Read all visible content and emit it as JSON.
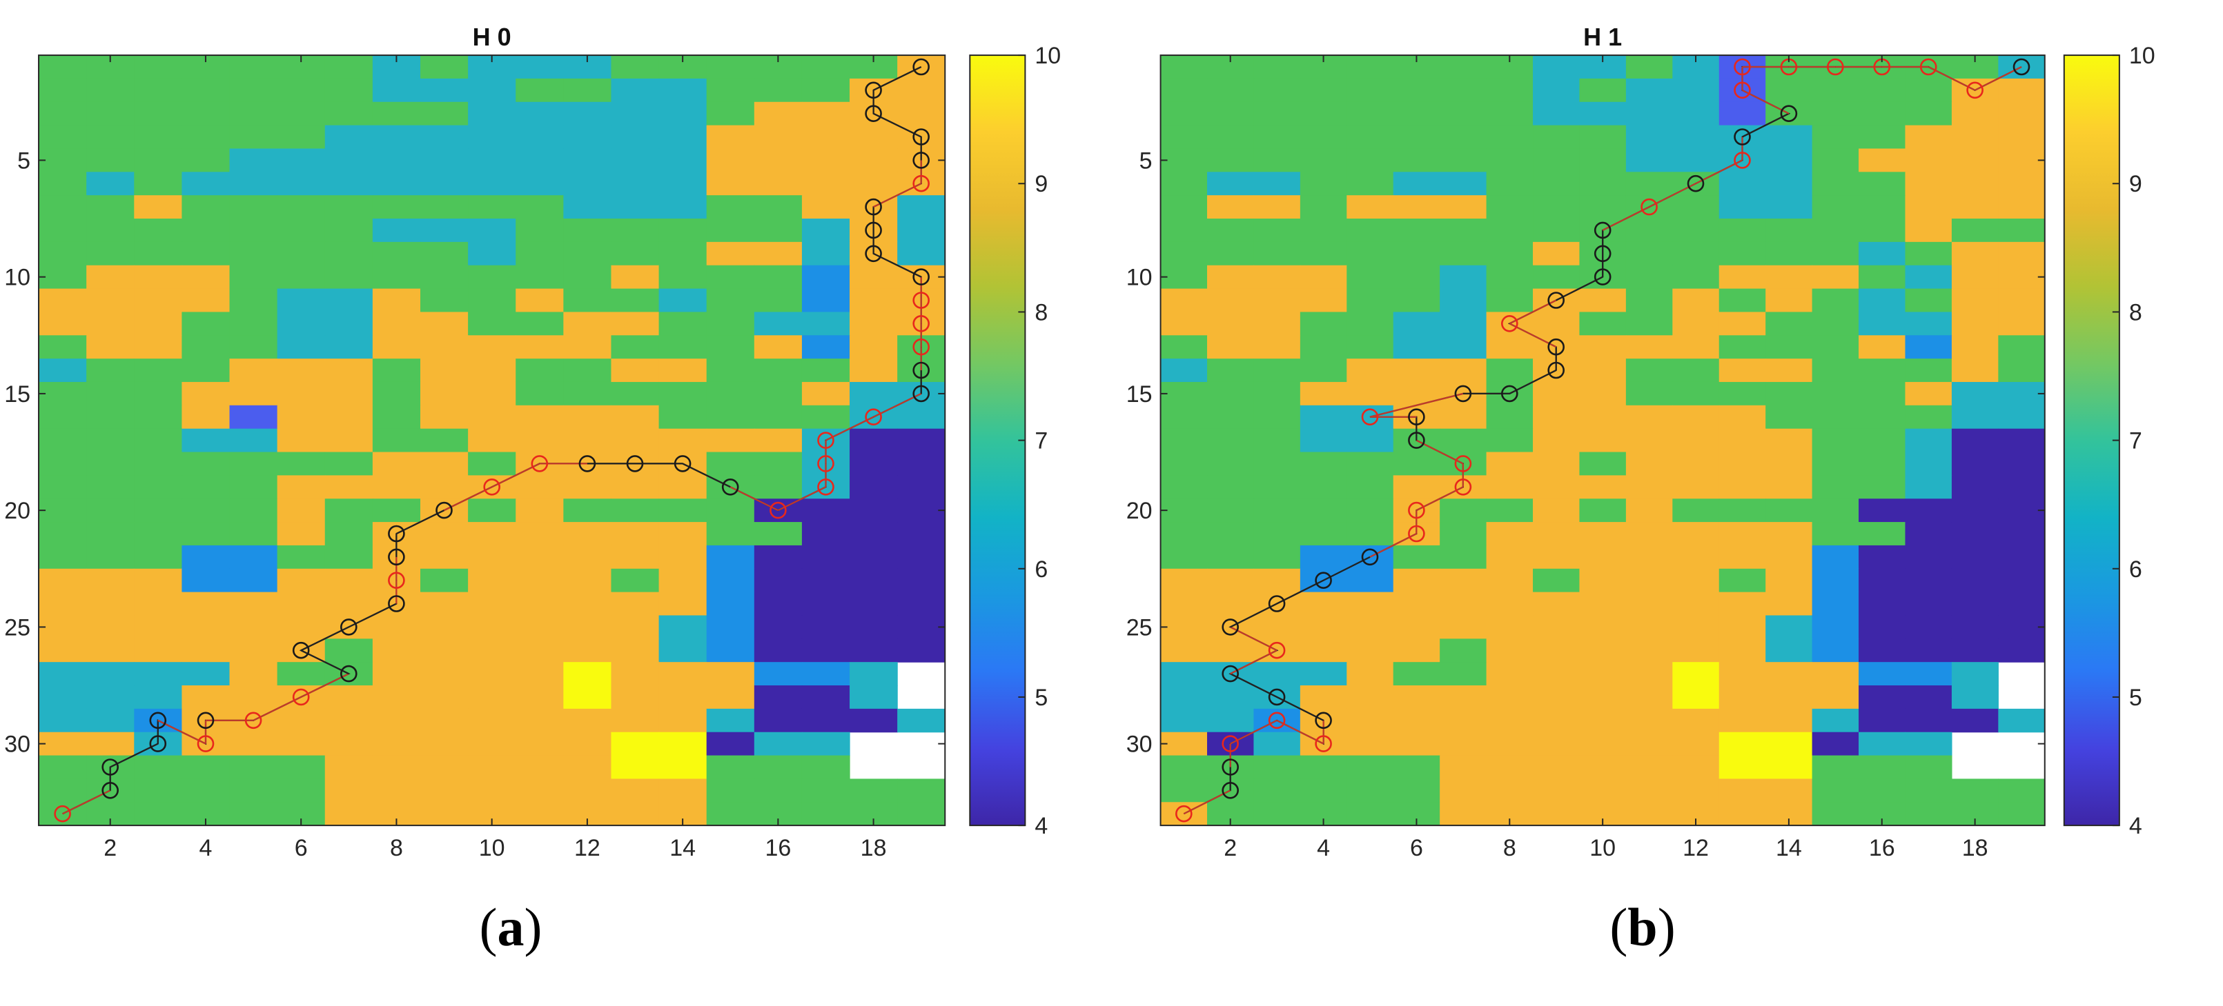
{
  "chart_data": [
    {
      "type": "heatmap",
      "title": "H 0",
      "caption_open": "(",
      "caption_letter": "a",
      "caption_close": ")",
      "xlabel": "",
      "ylabel": "",
      "xlim": [
        0.5,
        19.5
      ],
      "ylim": [
        33.5,
        0.5
      ],
      "x_ticks": [
        2,
        4,
        6,
        8,
        10,
        12,
        14,
        16,
        18
      ],
      "y_ticks": [
        5,
        10,
        15,
        20,
        25,
        30
      ],
      "colorbar": {
        "min": 4,
        "max": 10,
        "ticks": [
          4,
          5,
          6,
          7,
          8,
          9,
          10
        ],
        "colormap": "parula"
      },
      "grid_rows": [
        "8888888787778888889",
        "8888888777887788899",
        "8888888887777789999",
        "8888887777777799999",
        "8888777777777799999",
        "8787777777777799999",
        "8898888888877788997",
        "8888888777888888797",
        "8888888887888899797",
        "8999888888889888699",
        "9999877988988788699",
        "9998877998899887799",
        "8998877999998889698",
        "7888999899889988898",
        "8889999899888888977",
        "8889599899999888877",
        "8887799889999999744",
        "8888888998999988744",
        "8888899999999988744",
        "8888898898988884444",
        "8888898999999988444",
        "8886688999999964444",
        "9996699989998964444",
        "9999999999999964444",
        "9999999999999764444",
        "9999998999999764444",
        "7777988999910999667",
        "7779999999910999447",
        "7769999999999974447",
        "9979999999991010477",
        "8888889999991010888",
        "8888889999999988888",
        "8888889999999988888"
      ],
      "path": [
        {
          "x": 1,
          "y": 33,
          "c": "red"
        },
        {
          "x": 2,
          "y": 32,
          "c": "black"
        },
        {
          "x": 2,
          "y": 31,
          "c": "black"
        },
        {
          "x": 3,
          "y": 30,
          "c": "black"
        },
        {
          "x": 3,
          "y": 29,
          "c": "black"
        },
        {
          "x": 4,
          "y": 30,
          "c": "red"
        },
        {
          "x": 4,
          "y": 29,
          "c": "black"
        },
        {
          "x": 5,
          "y": 29,
          "c": "red"
        },
        {
          "x": 6,
          "y": 28,
          "c": "red"
        },
        {
          "x": 7,
          "y": 27,
          "c": "black"
        },
        {
          "x": 6,
          "y": 26,
          "c": "black"
        },
        {
          "x": 7,
          "y": 25,
          "c": "black"
        },
        {
          "x": 8,
          "y": 24,
          "c": "black"
        },
        {
          "x": 8,
          "y": 23,
          "c": "red"
        },
        {
          "x": 8,
          "y": 22,
          "c": "black"
        },
        {
          "x": 8,
          "y": 21,
          "c": "black"
        },
        {
          "x": 9,
          "y": 20,
          "c": "black"
        },
        {
          "x": 10,
          "y": 19,
          "c": "red"
        },
        {
          "x": 11,
          "y": 18,
          "c": "red"
        },
        {
          "x": 12,
          "y": 18,
          "c": "black"
        },
        {
          "x": 13,
          "y": 18,
          "c": "black"
        },
        {
          "x": 14,
          "y": 18,
          "c": "black"
        },
        {
          "x": 15,
          "y": 19,
          "c": "black"
        },
        {
          "x": 16,
          "y": 20,
          "c": "red"
        },
        {
          "x": 17,
          "y": 19,
          "c": "red"
        },
        {
          "x": 17,
          "y": 18,
          "c": "red"
        },
        {
          "x": 17,
          "y": 17,
          "c": "red"
        },
        {
          "x": 18,
          "y": 16,
          "c": "red"
        },
        {
          "x": 19,
          "y": 15,
          "c": "black"
        },
        {
          "x": 19,
          "y": 14,
          "c": "black"
        },
        {
          "x": 19,
          "y": 13,
          "c": "red"
        },
        {
          "x": 19,
          "y": 12,
          "c": "red"
        },
        {
          "x": 19,
          "y": 11,
          "c": "red"
        },
        {
          "x": 19,
          "y": 10,
          "c": "black"
        },
        {
          "x": 18,
          "y": 9,
          "c": "black"
        },
        {
          "x": 18,
          "y": 8,
          "c": "black"
        },
        {
          "x": 18,
          "y": 7,
          "c": "black"
        },
        {
          "x": 19,
          "y": 6,
          "c": "red"
        },
        {
          "x": 19,
          "y": 5,
          "c": "black"
        },
        {
          "x": 19,
          "y": 4,
          "c": "black"
        },
        {
          "x": 18,
          "y": 3,
          "c": "black"
        },
        {
          "x": 18,
          "y": 2,
          "c": "black"
        },
        {
          "x": 19,
          "y": 1,
          "c": "black"
        }
      ]
    },
    {
      "type": "heatmap",
      "title": "H 1",
      "caption_open": "(",
      "caption_letter": "b",
      "caption_close": ")",
      "xlabel": "",
      "ylabel": "",
      "xlim": [
        0.5,
        19.5
      ],
      "ylim": [
        33.5,
        0.5
      ],
      "x_ticks": [
        2,
        4,
        6,
        8,
        10,
        12,
        14,
        16,
        18
      ],
      "y_ticks": [
        5,
        10,
        15,
        20,
        25,
        30
      ],
      "colorbar": {
        "min": 4,
        "max": 10,
        "ticks": [
          4,
          5,
          6,
          7,
          8,
          9,
          10
        ],
        "colormap": "parula"
      },
      "grid_rows": [
        "8888888877875888887",
        "8888888878775888899",
        "8888888877775888899",
        "8888888888777788999",
        "8888888888777789999",
        "8778877888887788999",
        "8998999888887788999",
        "8888888888888888988",
        "8888888898888887899",
        "8999887888889998799",
        "9999887899898987899",
        "9998877998899887799",
        "8998877999998889698",
        "7888999899889988898",
        "8889999899888888977",
        "8887799899999888877",
        "8887788899999988744",
        "8888888998999988744",
        "8888899999999988744",
        "8888898898988884444",
        "8888898999999988444",
        "8886688999999964444",
        "9996699989998964444",
        "9999999999999964444",
        "9999999999999764444",
        "9999998999999764444",
        "7777988999910999667",
        "7779999999910999447",
        "7769999999999974447",
        "9479999999991010477",
        "8888889999991010888",
        "8888889999999988888",
        "9888889999999988888"
      ],
      "path": [
        {
          "x": 1,
          "y": 33,
          "c": "red"
        },
        {
          "x": 2,
          "y": 32,
          "c": "black"
        },
        {
          "x": 2,
          "y": 31,
          "c": "black"
        },
        {
          "x": 2,
          "y": 30,
          "c": "red"
        },
        {
          "x": 3,
          "y": 29,
          "c": "red"
        },
        {
          "x": 4,
          "y": 30,
          "c": "red"
        },
        {
          "x": 4,
          "y": 29,
          "c": "black"
        },
        {
          "x": 3,
          "y": 28,
          "c": "black"
        },
        {
          "x": 2,
          "y": 27,
          "c": "black"
        },
        {
          "x": 3,
          "y": 26,
          "c": "red"
        },
        {
          "x": 2,
          "y": 25,
          "c": "black"
        },
        {
          "x": 3,
          "y": 24,
          "c": "black"
        },
        {
          "x": 4,
          "y": 23,
          "c": "black"
        },
        {
          "x": 5,
          "y": 22,
          "c": "black"
        },
        {
          "x": 6,
          "y": 21,
          "c": "red"
        },
        {
          "x": 6,
          "y": 20,
          "c": "red"
        },
        {
          "x": 7,
          "y": 19,
          "c": "red"
        },
        {
          "x": 7,
          "y": 18,
          "c": "red"
        },
        {
          "x": 6,
          "y": 17,
          "c": "black"
        },
        {
          "x": 6,
          "y": 16,
          "c": "black"
        },
        {
          "x": 5,
          "y": 16,
          "c": "red"
        },
        {
          "x": 7,
          "y": 15,
          "c": "black"
        },
        {
          "x": 8,
          "y": 15,
          "c": "black"
        },
        {
          "x": 9,
          "y": 14,
          "c": "black"
        },
        {
          "x": 9,
          "y": 13,
          "c": "black"
        },
        {
          "x": 8,
          "y": 12,
          "c": "red"
        },
        {
          "x": 9,
          "y": 11,
          "c": "black"
        },
        {
          "x": 10,
          "y": 10,
          "c": "black"
        },
        {
          "x": 10,
          "y": 9,
          "c": "black"
        },
        {
          "x": 10,
          "y": 8,
          "c": "black"
        },
        {
          "x": 11,
          "y": 7,
          "c": "red"
        },
        {
          "x": 12,
          "y": 6,
          "c": "black"
        },
        {
          "x": 13,
          "y": 5,
          "c": "red"
        },
        {
          "x": 13,
          "y": 4,
          "c": "black"
        },
        {
          "x": 14,
          "y": 3,
          "c": "black"
        },
        {
          "x": 13,
          "y": 2,
          "c": "red"
        },
        {
          "x": 13,
          "y": 1,
          "c": "red"
        },
        {
          "x": 14,
          "y": 1,
          "c": "red"
        },
        {
          "x": 15,
          "y": 1,
          "c": "red"
        },
        {
          "x": 16,
          "y": 1,
          "c": "red"
        },
        {
          "x": 17,
          "y": 1,
          "c": "red"
        },
        {
          "x": 18,
          "y": 2,
          "c": "red"
        },
        {
          "x": 19,
          "y": 1,
          "c": "black"
        }
      ]
    }
  ]
}
